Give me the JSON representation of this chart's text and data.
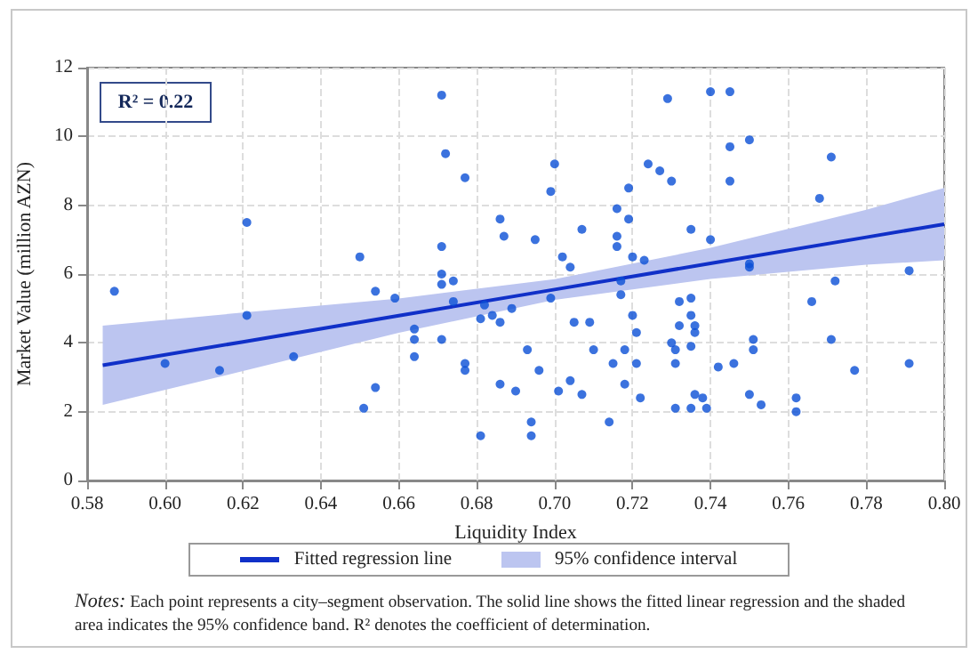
{
  "chart_data": {
    "type": "scatter",
    "xlabel": "Liquidity Index",
    "ylabel": "Market Value (million AZN)",
    "xlim": [
      0.58,
      0.8
    ],
    "xticks": [
      0.58,
      {
        "value": 0.6,
        "label": "0.60"
      },
      0.62,
      0.64,
      0.66,
      0.68,
      {
        "value": 0.7,
        "label": "0.70"
      },
      0.72,
      0.74,
      0.76,
      0.78,
      {
        "value": 0.8,
        "label": "0.80"
      }
    ],
    "ylim": [
      0,
      12
    ],
    "yticks": [
      0,
      2,
      4,
      6,
      8,
      10,
      12
    ],
    "grid": true,
    "legend": "bottom",
    "annotations": [
      "R² = 0.22",
      "95% confidence interval",
      "Notes: Each point represents a city–segment observation. The solid line shows the fitted linear regression and the shaded area indicates the 95% confidence band. R² denotes the coefficient of determination."
    ],
    "series": [
      {
        "type": "line",
        "name": "Fitted regression line",
        "color": "#1030c8",
        "x": [
          0.584,
          0.62,
          0.66,
          0.7,
          0.74,
          0.78,
          0.8
        ],
        "values": [
          3.35,
          4.03,
          4.79,
          5.55,
          6.31,
          7.07,
          7.45
        ],
        "lower": [
          2.2,
          3.18,
          4.29,
          5.25,
          5.86,
          6.27,
          6.4
        ],
        "upper": [
          4.5,
          4.88,
          5.29,
          5.85,
          6.76,
          7.87,
          8.5
        ]
      },
      {
        "color": "#0a4fd6",
        "marker": "circle",
        "x": [
          0.587,
          0.6,
          0.614,
          0.621,
          0.621,
          0.633,
          0.65,
          0.651,
          0.654,
          0.654,
          0.659,
          0.664,
          0.664,
          0.664,
          0.671,
          0.671,
          0.672,
          0.671,
          0.671,
          0.671,
          0.674,
          0.674,
          0.677,
          0.677,
          0.677,
          0.681,
          0.681,
          0.682,
          0.684,
          0.686,
          0.687,
          0.686,
          0.686,
          0.689,
          0.69,
          0.693,
          0.694,
          0.694,
          0.696,
          0.695,
          0.699,
          0.699,
          0.7,
          0.701,
          0.702,
          0.704,
          0.704,
          0.705,
          0.707,
          0.707,
          0.709,
          0.71,
          0.714,
          0.715,
          0.716,
          0.716,
          0.716,
          0.717,
          0.717,
          0.718,
          0.718,
          0.719,
          0.719,
          0.72,
          0.72,
          0.721,
          0.721,
          0.722,
          0.723,
          0.724,
          0.727,
          0.729,
          0.73,
          0.73,
          0.731,
          0.732,
          0.731,
          0.731,
          0.732,
          0.735,
          0.735,
          0.735,
          0.735,
          0.735,
          0.736,
          0.736,
          0.736,
          0.738,
          0.739,
          0.74,
          0.74,
          0.742,
          0.745,
          0.745,
          0.745,
          0.746,
          0.75,
          0.75,
          0.75,
          0.75,
          0.751,
          0.751,
          0.753,
          0.762,
          0.762,
          0.766,
          0.768,
          0.771,
          0.772,
          0.771,
          0.777,
          0.791,
          0.791
        ],
        "values": [
          5.5,
          3.4,
          3.2,
          7.5,
          4.8,
          3.6,
          6.5,
          2.1,
          5.5,
          2.7,
          5.3,
          4.4,
          4.1,
          3.6,
          6.8,
          11.2,
          9.5,
          6.0,
          5.7,
          4.1,
          5.8,
          5.2,
          8.8,
          3.4,
          3.2,
          1.3,
          4.7,
          5.1,
          4.8,
          7.6,
          7.1,
          4.6,
          2.8,
          5.0,
          2.6,
          3.8,
          1.7,
          1.3,
          3.2,
          7.0,
          5.3,
          8.4,
          9.2,
          2.6,
          6.5,
          6.2,
          2.9,
          4.6,
          2.5,
          7.3,
          4.6,
          3.8,
          1.7,
          3.4,
          7.9,
          7.1,
          6.8,
          5.8,
          5.4,
          3.8,
          2.8,
          7.6,
          8.5,
          6.5,
          4.8,
          3.4,
          4.3,
          2.4,
          6.4,
          9.2,
          9.0,
          11.1,
          8.7,
          4.0,
          2.1,
          5.2,
          3.8,
          3.4,
          4.5,
          7.3,
          2.1,
          5.3,
          4.8,
          3.9,
          4.5,
          4.3,
          2.5,
          2.4,
          2.1,
          11.3,
          7.0,
          3.3,
          11.3,
          8.7,
          9.7,
          3.4,
          9.9,
          6.3,
          6.2,
          2.5,
          4.1,
          3.8,
          2.2,
          2.4,
          2.0,
          5.2,
          8.2,
          9.4,
          5.8,
          4.1,
          3.2,
          6.1,
          3.4
        ]
      }
    ]
  }
}
